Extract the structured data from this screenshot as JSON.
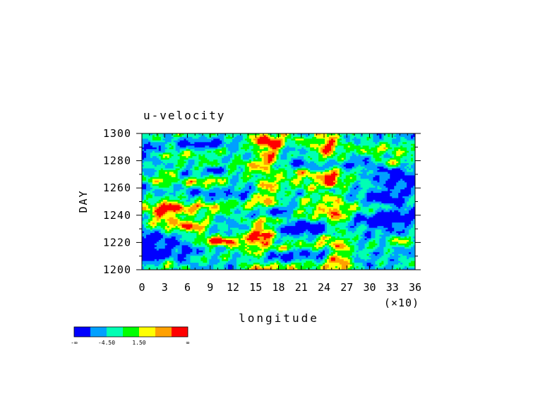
{
  "chart_data": {
    "type": "heatmap",
    "title": "u-velocity",
    "xlabel": "longitude",
    "ylabel": "DAY",
    "x_multiplier_label": "(×10)",
    "xlim": [
      0,
      36
    ],
    "ylim": [
      1200,
      1300
    ],
    "x_ticks": [
      0,
      3,
      6,
      9,
      12,
      15,
      18,
      21,
      24,
      27,
      30,
      33,
      36
    ],
    "y_ticks": [
      1200,
      1220,
      1240,
      1260,
      1280,
      1300
    ],
    "x_tick_labels": [
      "0",
      "3",
      "6",
      "9",
      "12",
      "15",
      "18",
      "21",
      "24",
      "27",
      "30",
      "33",
      "36"
    ],
    "y_tick_labels": [
      "1200",
      "1220",
      "1240",
      "1260",
      "1280",
      "1300"
    ],
    "colorbar": {
      "placement": "bottom-left",
      "colors": [
        "#0000ff",
        "#00a0ff",
        "#00ffb4",
        "#00ff00",
        "#ffff00",
        "#ffa000",
        "#ff0000"
      ],
      "labels": [
        "-∞",
        "-4.50",
        "1.50",
        "∞"
      ]
    }
  }
}
